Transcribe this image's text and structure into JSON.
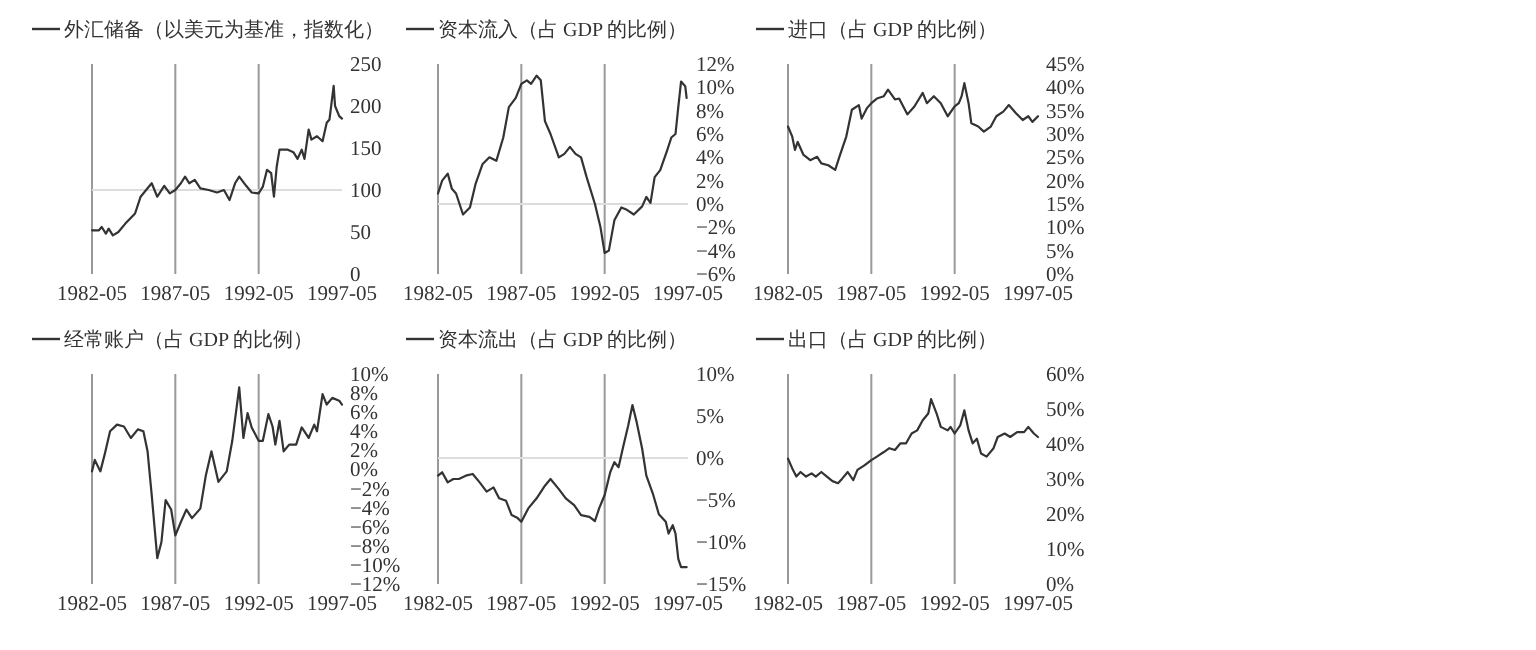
{
  "chart_data": [
    {
      "type": "line",
      "legend": "top",
      "xlim": [
        "1982-05",
        "1997-05"
      ],
      "ylim": [
        0,
        250
      ],
      "xticks": [
        "1982-05",
        "1987-05",
        "1992-05",
        "1997-05"
      ],
      "yticks": [
        0,
        50,
        100,
        150,
        200,
        250
      ],
      "ref_lines": [
        {
          "axis": "x",
          "value": "1987-05",
          "color": "#999999"
        },
        {
          "axis": "x",
          "value": "1992-05",
          "color": "#999999"
        },
        {
          "axis": "y",
          "value": 100,
          "color": "#dddddd"
        }
      ],
      "series": [
        {
          "name": "外汇储备（以美元为基准，指数化）",
          "color": "#333333",
          "x": [
            "1982-05",
            "1982-10",
            "1982-12",
            "1983-03",
            "1983-05",
            "1983-08",
            "1983-12",
            "1984-05",
            "1984-12",
            "1985-04",
            "1985-09",
            "1985-12",
            "1986-04",
            "1986-09",
            "1987-01",
            "1987-05",
            "1987-09",
            "1987-12",
            "1988-03",
            "1988-07",
            "1988-11",
            "1989-05",
            "1989-11",
            "1990-04",
            "1990-08",
            "1990-12",
            "1991-03",
            "1991-08",
            "1991-12",
            "1992-05",
            "1992-08",
            "1992-11",
            "1993-02",
            "1993-04",
            "1993-06",
            "1993-08",
            "1994-02",
            "1994-06",
            "1994-09",
            "1994-12",
            "1995-02",
            "1995-05",
            "1995-07",
            "1995-11",
            "1996-03",
            "1996-06",
            "1996-08",
            "1996-11",
            "1996-12",
            "1997-03",
            "1997-05"
          ],
          "values": [
            52,
            52,
            56,
            48,
            54,
            46,
            50,
            60,
            72,
            92,
            102,
            108,
            92,
            105,
            96,
            100,
            108,
            116,
            108,
            112,
            102,
            100,
            97,
            100,
            88,
            108,
            116,
            105,
            97,
            96,
            104,
            124,
            120,
            92,
            128,
            148,
            148,
            145,
            137,
            148,
            137,
            172,
            160,
            164,
            158,
            180,
            184,
            224,
            200,
            188,
            185
          ]
        }
      ]
    },
    {
      "type": "line",
      "legend": "top",
      "xlim": [
        "1982-05",
        "1997-05"
      ],
      "ylim": [
        -6,
        12
      ],
      "xticks": [
        "1982-05",
        "1987-05",
        "1992-05",
        "1997-05"
      ],
      "yticks": [
        {
          "value": -6,
          "label": "−6%"
        },
        {
          "value": -4,
          "label": "−4%"
        },
        {
          "value": -2,
          "label": "−2%"
        },
        {
          "value": 0,
          "label": "0%"
        },
        {
          "value": 2,
          "label": "2%"
        },
        {
          "value": 4,
          "label": "4%"
        },
        {
          "value": 6,
          "label": "6%"
        },
        {
          "value": 8,
          "label": "8%"
        },
        {
          "value": 10,
          "label": "10%"
        },
        {
          "value": 12,
          "label": "12%"
        }
      ],
      "ref_lines": [
        {
          "axis": "x",
          "value": "1987-05",
          "color": "#999999"
        },
        {
          "axis": "x",
          "value": "1992-05",
          "color": "#999999"
        },
        {
          "axis": "y",
          "value": 0,
          "color": "#dddddd"
        }
      ],
      "series": [
        {
          "name": "资本流入（占 GDP 的比例）",
          "color": "#333333",
          "x": [
            "1982-05",
            "1982-08",
            "1982-12",
            "1983-03",
            "1983-06",
            "1983-11",
            "1984-04",
            "1984-08",
            "1985-01",
            "1985-06",
            "1985-11",
            "1986-04",
            "1986-08",
            "1987-01",
            "1987-05",
            "1987-09",
            "1987-12",
            "1988-04",
            "1988-07",
            "1988-10",
            "1989-02",
            "1989-08",
            "1989-12",
            "1990-04",
            "1990-08",
            "1990-12",
            "1991-04",
            "1991-10",
            "1992-02",
            "1992-05",
            "1992-08",
            "1992-12",
            "1993-05",
            "1993-09",
            "1994-02",
            "1994-08",
            "1994-11",
            "1995-02",
            "1995-05",
            "1995-09",
            "1996-02",
            "1996-05",
            "1996-08",
            "1996-10",
            "1996-12",
            "1997-03",
            "1997-04"
          ],
          "values": [
            0.9,
            2.0,
            2.6,
            1.3,
            0.9,
            -0.9,
            -0.3,
            1.7,
            3.4,
            4.0,
            3.7,
            5.7,
            8.3,
            9.1,
            10.3,
            10.6,
            10.3,
            11.0,
            10.6,
            7.1,
            6.0,
            4.0,
            4.3,
            4.9,
            4.3,
            4.0,
            2.3,
            0.0,
            -2.0,
            -4.2,
            -4.0,
            -1.4,
            -0.3,
            -0.5,
            -0.9,
            -0.2,
            0.6,
            0.1,
            2.3,
            2.9,
            4.6,
            5.7,
            6.0,
            8.3,
            10.5,
            10.1,
            9.1
          ]
        }
      ]
    },
    {
      "type": "line",
      "legend": "top",
      "xlim": [
        "1982-05",
        "1997-05"
      ],
      "ylim": [
        0,
        45
      ],
      "xticks": [
        "1982-05",
        "1987-05",
        "1992-05",
        "1997-05"
      ],
      "yticks": [
        {
          "value": 0,
          "label": "0%"
        },
        {
          "value": 5,
          "label": "5%"
        },
        {
          "value": 10,
          "label": "10%"
        },
        {
          "value": 15,
          "label": "15%"
        },
        {
          "value": 20,
          "label": "20%"
        },
        {
          "value": 25,
          "label": "25%"
        },
        {
          "value": 30,
          "label": "30%"
        },
        {
          "value": 35,
          "label": "35%"
        },
        {
          "value": 40,
          "label": "40%"
        },
        {
          "value": 45,
          "label": "45%"
        }
      ],
      "ref_lines": [
        {
          "axis": "x",
          "value": "1987-05",
          "color": "#999999"
        },
        {
          "axis": "x",
          "value": "1992-05",
          "color": "#999999"
        }
      ],
      "series": [
        {
          "name": "进口（占 GDP 的比例）",
          "color": "#333333",
          "x": [
            "1982-05",
            "1982-08",
            "1982-10",
            "1982-12",
            "1983-04",
            "1983-09",
            "1984-02",
            "1984-05",
            "1984-10",
            "1985-03",
            "1985-06",
            "1985-11",
            "1986-03",
            "1986-08",
            "1986-10",
            "1987-02",
            "1987-05",
            "1987-09",
            "1988-02",
            "1988-05",
            "1988-10",
            "1989-01",
            "1989-07",
            "1989-12",
            "1990-06",
            "1990-09",
            "1991-02",
            "1991-07",
            "1991-12",
            "1992-05",
            "1992-08",
            "1992-10",
            "1992-12",
            "1993-03",
            "1993-05",
            "1993-10",
            "1994-02",
            "1994-07",
            "1994-11",
            "1995-04",
            "1995-08",
            "1996-01",
            "1996-06",
            "1996-10",
            "1997-01",
            "1997-05"
          ],
          "values": [
            31.6,
            29.5,
            26.6,
            28.3,
            25.6,
            24.4,
            25.1,
            23.7,
            23.3,
            22.3,
            25.1,
            29.5,
            35.2,
            36.2,
            33.3,
            35.6,
            36.6,
            37.6,
            38.1,
            39.5,
            37.4,
            37.6,
            34.2,
            35.9,
            38.8,
            36.6,
            38.1,
            36.6,
            33.8,
            35.9,
            36.6,
            38.1,
            40.9,
            36.6,
            32.3,
            31.6,
            30.5,
            31.6,
            33.8,
            34.8,
            36.2,
            34.5,
            33.0,
            33.8,
            32.6,
            33.8
          ]
        }
      ]
    },
    {
      "type": "line",
      "legend": "top",
      "xlim": [
        "1982-05",
        "1997-05"
      ],
      "ylim": [
        -12,
        10
      ],
      "xticks": [
        "1982-05",
        "1987-05",
        "1992-05",
        "1997-05"
      ],
      "yticks": [
        {
          "value": -12,
          "label": "−12%"
        },
        {
          "value": -10,
          "label": "−10%"
        },
        {
          "value": -8,
          "label": "−8%"
        },
        {
          "value": -6,
          "label": "−6%"
        },
        {
          "value": -4,
          "label": "−4%"
        },
        {
          "value": -2,
          "label": "−2%"
        },
        {
          "value": 0,
          "label": "0%"
        },
        {
          "value": 2,
          "label": "2%"
        },
        {
          "value": 4,
          "label": "4%"
        },
        {
          "value": 6,
          "label": "6%"
        },
        {
          "value": 8,
          "label": "8%"
        },
        {
          "value": 10,
          "label": "10%"
        }
      ],
      "ref_lines": [
        {
          "axis": "x",
          "value": "1987-05",
          "color": "#999999"
        },
        {
          "axis": "x",
          "value": "1992-05",
          "color": "#999999"
        }
      ],
      "series": [
        {
          "name": "经常账户（占 GDP 的比例）",
          "color": "#333333",
          "x": [
            "1982-05",
            "1982-07",
            "1982-11",
            "1983-02",
            "1983-06",
            "1983-11",
            "1984-04",
            "1984-09",
            "1985-02",
            "1985-06",
            "1985-09",
            "1985-12",
            "1986-04",
            "1986-07",
            "1986-10",
            "1987-02",
            "1987-05",
            "1987-09",
            "1988-01",
            "1988-05",
            "1988-11",
            "1989-03",
            "1989-07",
            "1989-12",
            "1990-06",
            "1990-10",
            "1991-03",
            "1991-06",
            "1991-09",
            "1991-12",
            "1992-05",
            "1992-08",
            "1992-12",
            "1993-03",
            "1993-05",
            "1993-08",
            "1993-11",
            "1994-03",
            "1994-08",
            "1994-12",
            "1995-05",
            "1995-09",
            "1995-11",
            "1996-03",
            "1996-06",
            "1996-10",
            "1997-03",
            "1997-05"
          ],
          "values": [
            -0.2,
            1.0,
            -0.2,
            1.5,
            4.0,
            4.7,
            4.5,
            3.3,
            4.2,
            4.0,
            1.9,
            -2.7,
            -9.3,
            -7.6,
            -3.2,
            -4.2,
            -6.9,
            -5.5,
            -4.2,
            -5.1,
            -4.1,
            -0.6,
            1.9,
            -1.3,
            -0.2,
            3.0,
            8.6,
            3.3,
            5.9,
            4.4,
            3.0,
            3.0,
            5.8,
            4.5,
            2.6,
            5.1,
            1.9,
            2.6,
            2.6,
            4.4,
            3.3,
            4.7,
            4.0,
            7.9,
            6.8,
            7.5,
            7.2,
            6.8
          ]
        }
      ]
    },
    {
      "type": "line",
      "legend": "top",
      "xlim": [
        "1982-05",
        "1997-05"
      ],
      "ylim": [
        -15,
        10
      ],
      "xticks": [
        "1982-05",
        "1987-05",
        "1992-05",
        "1997-05"
      ],
      "yticks": [
        {
          "value": -15,
          "label": "−15%"
        },
        {
          "value": -10,
          "label": "−10%"
        },
        {
          "value": -5,
          "label": "−5%"
        },
        {
          "value": 0,
          "label": "0%"
        },
        {
          "value": 5,
          "label": "5%"
        },
        {
          "value": 10,
          "label": "10%"
        }
      ],
      "ref_lines": [
        {
          "axis": "x",
          "value": "1987-05",
          "color": "#999999"
        },
        {
          "axis": "x",
          "value": "1992-05",
          "color": "#999999"
        },
        {
          "axis": "y",
          "value": 0,
          "color": "#dddddd"
        }
      ],
      "series": [
        {
          "name": "资本流出（占 GDP 的比例）",
          "color": "#333333",
          "x": [
            "1982-05",
            "1982-08",
            "1982-12",
            "1983-04",
            "1983-08",
            "1984-01",
            "1984-06",
            "1984-11",
            "1985-04",
            "1985-09",
            "1986-01",
            "1986-06",
            "1986-10",
            "1987-02",
            "1987-05",
            "1987-10",
            "1988-04",
            "1988-10",
            "1989-02",
            "1989-08",
            "1990-01",
            "1990-07",
            "1990-12",
            "1991-06",
            "1991-10",
            "1992-01",
            "1992-05",
            "1992-09",
            "1992-12",
            "1993-03",
            "1993-06",
            "1993-10",
            "1994-01",
            "1994-04",
            "1994-08",
            "1994-11",
            "1995-04",
            "1995-08",
            "1996-01",
            "1996-03",
            "1996-06",
            "1996-08",
            "1996-10",
            "1996-12",
            "1997-04"
          ],
          "values": [
            -2.1,
            -1.7,
            -2.9,
            -2.5,
            -2.5,
            -2.1,
            -1.9,
            -2.9,
            -4.0,
            -3.5,
            -4.8,
            -5.1,
            -6.8,
            -7.1,
            -7.6,
            -6.0,
            -4.8,
            -3.3,
            -2.5,
            -3.7,
            -4.8,
            -5.6,
            -6.8,
            -7.0,
            -7.5,
            -6.0,
            -4.4,
            -1.7,
            -0.5,
            -1.1,
            1.1,
            3.9,
            6.3,
            4.3,
            1.1,
            -2.1,
            -4.4,
            -6.7,
            -7.6,
            -9.0,
            -8.0,
            -9.0,
            -12.0,
            -13.0,
            -13.0
          ]
        }
      ]
    },
    {
      "type": "line",
      "legend": "top",
      "xlim": [
        "1982-05",
        "1997-05"
      ],
      "ylim": [
        0,
        60
      ],
      "xticks": [
        "1982-05",
        "1987-05",
        "1992-05",
        "1997-05"
      ],
      "yticks": [
        {
          "value": 0,
          "label": "0%"
        },
        {
          "value": 10,
          "label": "10%"
        },
        {
          "value": 20,
          "label": "20%"
        },
        {
          "value": 30,
          "label": "30%"
        },
        {
          "value": 40,
          "label": "40%"
        },
        {
          "value": 50,
          "label": "50%"
        },
        {
          "value": 60,
          "label": "60%"
        }
      ],
      "ref_lines": [
        {
          "axis": "x",
          "value": "1987-05",
          "color": "#999999"
        },
        {
          "axis": "x",
          "value": "1992-05",
          "color": "#999999"
        }
      ],
      "series": [
        {
          "name": "出口（占 GDP 的比例）",
          "color": "#333333",
          "x": [
            "1982-05",
            "1982-08",
            "1982-11",
            "1983-02",
            "1983-06",
            "1983-10",
            "1984-01",
            "1984-05",
            "1984-09",
            "1985-01",
            "1985-05",
            "1985-08",
            "1985-12",
            "1986-04",
            "1986-07",
            "1986-12",
            "1987-05",
            "1987-09",
            "1988-02",
            "1988-06",
            "1988-10",
            "1989-02",
            "1989-06",
            "1989-10",
            "1990-02",
            "1990-06",
            "1990-10",
            "1990-12",
            "1991-04",
            "1991-07",
            "1991-12",
            "1992-02",
            "1992-05",
            "1992-09",
            "1992-12",
            "1993-03",
            "1993-06",
            "1993-09",
            "1993-12",
            "1994-04",
            "1994-09",
            "1994-12",
            "1995-05",
            "1995-09",
            "1996-02",
            "1996-07",
            "1996-10",
            "1997-02",
            "1997-05"
          ],
          "values": [
            35.8,
            33.1,
            30.7,
            32.0,
            30.7,
            31.6,
            30.7,
            32.0,
            30.7,
            29.4,
            28.8,
            30.1,
            32.0,
            29.7,
            32.6,
            33.9,
            35.4,
            36.4,
            37.7,
            38.8,
            38.3,
            40.2,
            40.2,
            43.0,
            43.9,
            46.8,
            48.7,
            52.8,
            48.7,
            44.9,
            43.9,
            44.9,
            43.0,
            45.3,
            49.6,
            43.9,
            40.2,
            41.5,
            37.3,
            36.4,
            38.8,
            42.0,
            43.0,
            42.0,
            43.4,
            43.4,
            44.9,
            43.0,
            42.0
          ]
        }
      ]
    }
  ]
}
